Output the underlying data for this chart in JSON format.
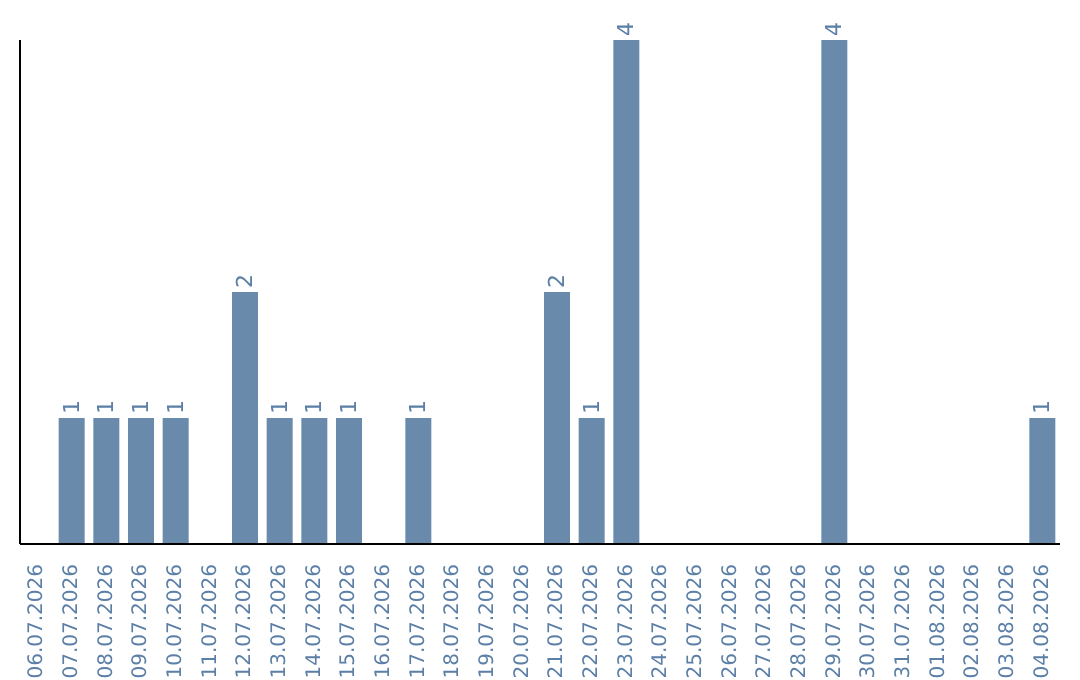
{
  "chart_data": {
    "type": "bar",
    "categories": [
      "06.07.2026",
      "07.07.2026",
      "08.07.2026",
      "09.07.2026",
      "10.07.2026",
      "11.07.2026",
      "12.07.2026",
      "13.07.2026",
      "14.07.2026",
      "15.07.2026",
      "16.07.2026",
      "17.07.2026",
      "18.07.2026",
      "19.07.2026",
      "20.07.2026",
      "21.07.2026",
      "22.07.2026",
      "23.07.2026",
      "24.07.2026",
      "25.07.2026",
      "26.07.2026",
      "27.07.2026",
      "28.07.2026",
      "29.07.2026",
      "30.07.2026",
      "31.07.2026",
      "01.08.2026",
      "02.08.2026",
      "03.08.2026",
      "04.08.2026"
    ],
    "values": [
      null,
      1,
      1,
      1,
      1,
      null,
      2,
      1,
      1,
      1,
      null,
      1,
      null,
      null,
      null,
      2,
      1,
      4,
      null,
      null,
      null,
      null,
      null,
      4,
      null,
      null,
      null,
      null,
      null,
      1
    ],
    "color": "#6a8aab",
    "ylim": [
      0,
      4
    ],
    "data_labels": true,
    "tick_labels": "x",
    "grid": false
  }
}
